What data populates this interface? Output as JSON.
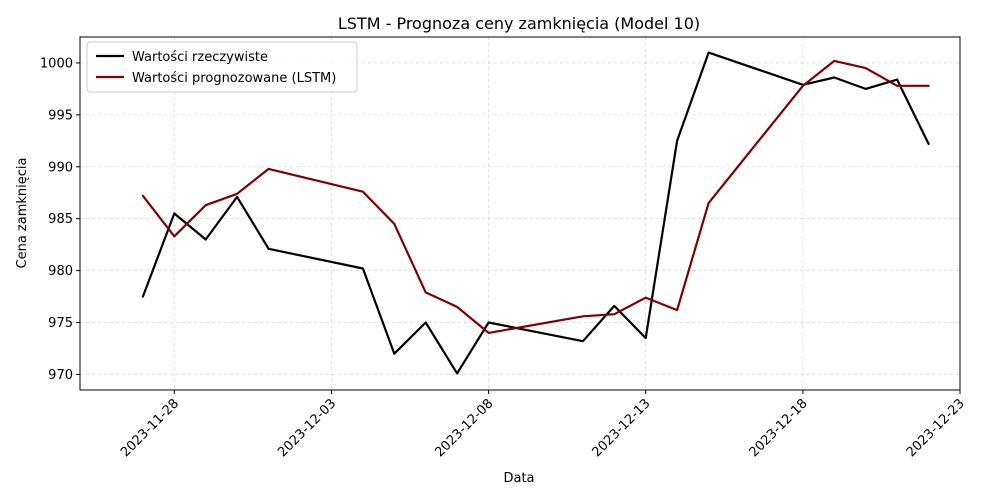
{
  "chart_data": {
    "type": "line",
    "title": "LSTM - Prognoza ceny zamknięcia (Model 10)",
    "xlabel": "Data",
    "ylabel": "Cena zamknięcia",
    "x_ticks": [
      "2023-11-28",
      "2023-12-03",
      "2023-12-08",
      "2023-12-13",
      "2023-12-18",
      "2023-12-23"
    ],
    "y_ticks": [
      970,
      975,
      980,
      985,
      990,
      995,
      1000
    ],
    "xlim": [
      "2023-11-25",
      "2023-12-23"
    ],
    "ylim": [
      968.5,
      1002.5
    ],
    "grid": true,
    "legend_position": "top-left",
    "series": [
      {
        "name": "Wartości rzeczywiste",
        "color": "#000000",
        "x": [
          "2023-11-27",
          "2023-11-28",
          "2023-11-29",
          "2023-11-30",
          "2023-12-01",
          "2023-12-04",
          "2023-12-05",
          "2023-12-06",
          "2023-12-07",
          "2023-12-08",
          "2023-12-11",
          "2023-12-12",
          "2023-12-13",
          "2023-12-14",
          "2023-12-15",
          "2023-12-18",
          "2023-12-19",
          "2023-12-20",
          "2023-12-21",
          "2023-12-22"
        ],
        "y": [
          977.5,
          985.5,
          983.0,
          987.1,
          982.1,
          980.2,
          972.0,
          975.0,
          970.1,
          975.0,
          973.2,
          976.6,
          973.5,
          992.5,
          1001.0,
          997.9,
          998.6,
          997.5,
          998.4,
          992.2
        ]
      },
      {
        "name": "Wartości prognozowane (LSTM)",
        "color": "#800000",
        "x": [
          "2023-11-27",
          "2023-11-28",
          "2023-11-29",
          "2023-11-30",
          "2023-12-01",
          "2023-12-04",
          "2023-12-05",
          "2023-12-06",
          "2023-12-07",
          "2023-12-08",
          "2023-12-11",
          "2023-12-12",
          "2023-12-13",
          "2023-12-14",
          "2023-12-15",
          "2023-12-18",
          "2023-12-19",
          "2023-12-20",
          "2023-12-21",
          "2023-12-22"
        ],
        "y": [
          987.2,
          983.3,
          986.3,
          987.4,
          989.8,
          987.6,
          984.5,
          977.9,
          976.5,
          974.0,
          975.6,
          975.8,
          977.4,
          976.2,
          986.5,
          997.8,
          1000.2,
          999.5,
          997.8,
          997.8
        ]
      }
    ]
  }
}
